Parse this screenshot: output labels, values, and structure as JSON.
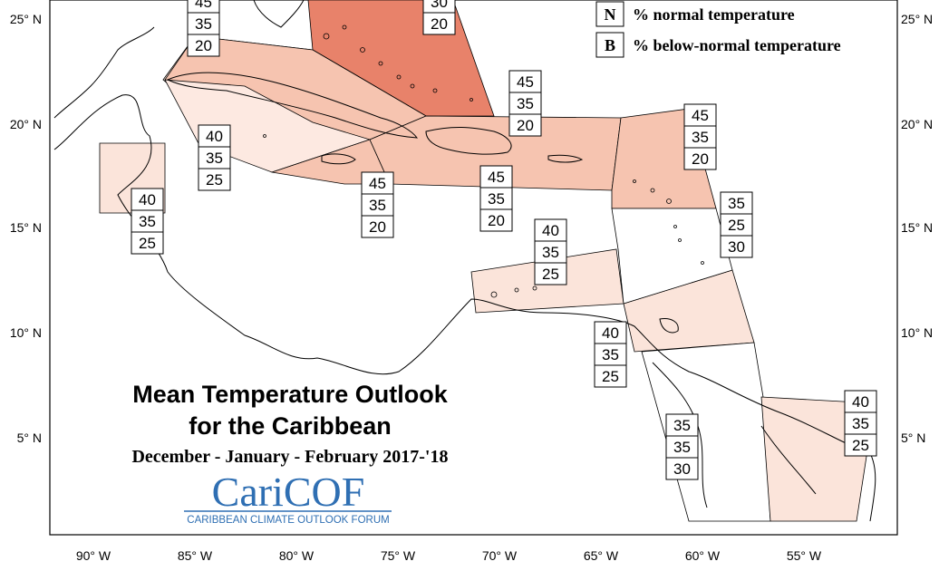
{
  "title": {
    "line1": "Mean Temperature Outlook",
    "line2": "for the Caribbean",
    "period": "December - January - February 2017-'18"
  },
  "logo": {
    "name": "CariCOF",
    "tagline": "CARIBBEAN CLIMATE OUTLOOK FORUM",
    "color": "#2f6fb3"
  },
  "legend": [
    {
      "key": "N",
      "label": "% normal temperature"
    },
    {
      "key": "B",
      "label": "% below-normal temperature"
    }
  ],
  "axes": {
    "x_ticks": [
      "90° W",
      "85° W",
      "80° W",
      "75° W",
      "70° W",
      "65° W",
      "60° W",
      "55° W"
    ],
    "y_ticks_left": [
      "25° N",
      "20° N",
      "15° N",
      "10° N",
      "5° N"
    ],
    "y_ticks_right": [
      "25° N",
      "20° N",
      "15° N",
      "10° N",
      "5° N"
    ]
  },
  "colors": {
    "above_45": "#f6c4b0",
    "above_30": "#e8826a",
    "above_40": "#fbe4da",
    "border": "#000000"
  },
  "regions": [
    {
      "id": "bahamas",
      "values": [
        "45",
        "35",
        "20"
      ]
    },
    {
      "id": "turks-caicos",
      "values": [
        "30",
        "20"
      ]
    },
    {
      "id": "cuba",
      "values": [
        "40",
        "35",
        "25"
      ]
    },
    {
      "id": "belize",
      "values": [
        "40",
        "35",
        "25"
      ]
    },
    {
      "id": "jamaica",
      "values": [
        "45",
        "35",
        "20"
      ]
    },
    {
      "id": "hispaniola",
      "values": [
        "45",
        "35",
        "20"
      ]
    },
    {
      "id": "puerto-rico",
      "values": [
        "45",
        "35",
        "20"
      ]
    },
    {
      "id": "leeward-islands",
      "values": [
        "45",
        "35",
        "20"
      ]
    },
    {
      "id": "windward-islands",
      "values": [
        "35",
        "25",
        "30"
      ]
    },
    {
      "id": "abc-islands",
      "values": [
        "40",
        "35",
        "25"
      ]
    },
    {
      "id": "trinidad",
      "values": [
        "40",
        "35",
        "25"
      ]
    },
    {
      "id": "guyana",
      "values": [
        "35",
        "35",
        "30"
      ]
    },
    {
      "id": "french-guiana",
      "values": [
        "40",
        "35",
        "25"
      ]
    }
  ]
}
